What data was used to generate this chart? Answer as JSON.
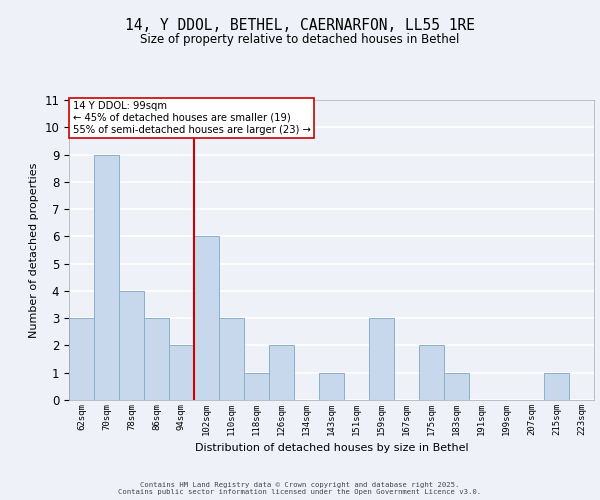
{
  "title": "14, Y DDOL, BETHEL, CAERNARFON, LL55 1RE",
  "subtitle": "Size of property relative to detached houses in Bethel",
  "xlabel": "Distribution of detached houses by size in Bethel",
  "ylabel": "Number of detached properties",
  "bin_labels": [
    "62sqm",
    "70sqm",
    "78sqm",
    "86sqm",
    "94sqm",
    "102sqm",
    "110sqm",
    "118sqm",
    "126sqm",
    "134sqm",
    "143sqm",
    "151sqm",
    "159sqm",
    "167sqm",
    "175sqm",
    "183sqm",
    "191sqm",
    "199sqm",
    "207sqm",
    "215sqm",
    "223sqm"
  ],
  "counts": [
    3,
    9,
    4,
    3,
    2,
    6,
    3,
    1,
    2,
    0,
    1,
    0,
    3,
    0,
    2,
    1,
    0,
    0,
    0,
    1,
    0
  ],
  "bar_color": "#c8d8ec",
  "bar_edge_color": "#8ab0cc",
  "property_line_color": "#cc0000",
  "annotation_text": "14 Y DDOL: 99sqm\n← 45% of detached houses are smaller (19)\n55% of semi-detached houses are larger (23) →",
  "annotation_box_color": "white",
  "annotation_box_edge": "#cc0000",
  "ylim": [
    0,
    11
  ],
  "yticks": [
    0,
    1,
    2,
    3,
    4,
    5,
    6,
    7,
    8,
    9,
    10,
    11
  ],
  "background_color": "#eef2f8",
  "grid_color": "white",
  "footer_line1": "Contains HM Land Registry data © Crown copyright and database right 2025.",
  "footer_line2": "Contains public sector information licensed under the Open Government Licence v3.0."
}
